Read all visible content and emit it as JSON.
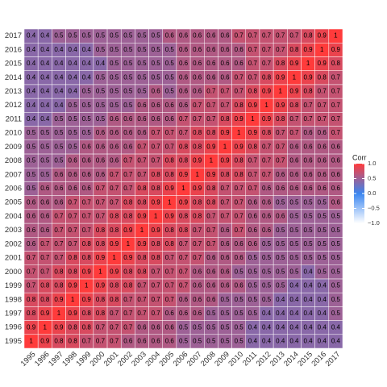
{
  "chart_data": {
    "type": "heatmap",
    "x": [
      "1995",
      "1996",
      "1997",
      "1998",
      "1999",
      "2000",
      "2001",
      "2002",
      "2003",
      "2004",
      "2005",
      "2006",
      "2007",
      "2008",
      "2009",
      "2010",
      "2011",
      "2012",
      "2013",
      "2014",
      "2015",
      "2016",
      "2017"
    ],
    "y": [
      "1995",
      "1996",
      "1997",
      "1998",
      "1999",
      "2000",
      "2001",
      "2002",
      "2003",
      "2004",
      "2005",
      "2006",
      "2007",
      "2008",
      "2009",
      "2010",
      "2011",
      "2012",
      "2013",
      "2014",
      "2015",
      "2016",
      "2017"
    ],
    "values": [
      [
        1,
        0.9,
        0.8,
        0.8,
        0.7,
        0.7,
        0.7,
        0.6,
        0.6,
        0.6,
        0.6,
        0.5,
        0.5,
        0.5,
        0.5,
        0.5,
        0.4,
        0.4,
        0.4,
        0.4,
        0.4,
        0.4,
        0.4
      ],
      [
        0.9,
        1,
        0.9,
        0.8,
        0.8,
        0.7,
        0.7,
        0.7,
        0.6,
        0.6,
        0.6,
        0.5,
        0.5,
        0.5,
        0.5,
        0.5,
        0.4,
        0.4,
        0.4,
        0.4,
        0.4,
        0.4,
        0.4
      ],
      [
        0.8,
        0.9,
        1,
        0.9,
        0.8,
        0.8,
        0.7,
        0.7,
        0.7,
        0.7,
        0.6,
        0.6,
        0.6,
        0.5,
        0.5,
        0.5,
        0.5,
        0.4,
        0.4,
        0.4,
        0.4,
        0.4,
        0.5
      ],
      [
        0.8,
        0.8,
        0.9,
        1,
        0.9,
        0.8,
        0.8,
        0.7,
        0.7,
        0.7,
        0.7,
        0.6,
        0.6,
        0.6,
        0.5,
        0.5,
        0.5,
        0.5,
        0.4,
        0.4,
        0.4,
        0.4,
        0.5
      ],
      [
        0.7,
        0.8,
        0.8,
        0.9,
        1,
        0.9,
        0.8,
        0.8,
        0.7,
        0.7,
        0.7,
        0.7,
        0.6,
        0.6,
        0.6,
        0.6,
        0.5,
        0.5,
        0.5,
        0.4,
        0.4,
        0.4,
        0.5
      ],
      [
        0.7,
        0.7,
        0.8,
        0.8,
        0.9,
        1,
        0.9,
        0.8,
        0.8,
        0.7,
        0.7,
        0.7,
        0.6,
        0.6,
        0.6,
        0.5,
        0.5,
        0.5,
        0.5,
        0.5,
        0.4,
        0.5,
        0.5
      ],
      [
        0.7,
        0.7,
        0.7,
        0.8,
        0.8,
        0.9,
        1,
        0.9,
        0.8,
        0.8,
        0.7,
        0.7,
        0.7,
        0.6,
        0.6,
        0.6,
        0.5,
        0.5,
        0.5,
        0.5,
        0.5,
        0.5,
        0.5
      ],
      [
        0.6,
        0.7,
        0.7,
        0.7,
        0.8,
        0.8,
        0.9,
        1,
        0.9,
        0.8,
        0.8,
        0.7,
        0.7,
        0.7,
        0.6,
        0.6,
        0.6,
        0.5,
        0.5,
        0.5,
        0.5,
        0.5,
        0.5
      ],
      [
        0.6,
        0.6,
        0.7,
        0.7,
        0.7,
        0.8,
        0.8,
        0.9,
        1,
        0.9,
        0.8,
        0.8,
        0.7,
        0.7,
        0.6,
        0.7,
        0.6,
        0.6,
        0.5,
        0.5,
        0.5,
        0.5,
        0.5
      ],
      [
        0.6,
        0.6,
        0.7,
        0.7,
        0.7,
        0.7,
        0.8,
        0.8,
        0.9,
        1,
        0.9,
        0.8,
        0.8,
        0.7,
        0.7,
        0.7,
        0.6,
        0.6,
        0.6,
        0.5,
        0.5,
        0.5,
        0.5
      ],
      [
        0.6,
        0.6,
        0.6,
        0.7,
        0.7,
        0.7,
        0.7,
        0.8,
        0.8,
        0.9,
        1,
        0.9,
        0.8,
        0.8,
        0.7,
        0.7,
        0.6,
        0.6,
        0.5,
        0.5,
        0.5,
        0.5,
        0.6
      ],
      [
        0.5,
        0.6,
        0.6,
        0.6,
        0.6,
        0.7,
        0.7,
        0.7,
        0.8,
        0.8,
        0.9,
        1,
        0.9,
        0.8,
        0.7,
        0.7,
        0.7,
        0.6,
        0.6,
        0.6,
        0.6,
        0.6,
        0.6
      ],
      [
        0.5,
        0.5,
        0.6,
        0.6,
        0.6,
        0.6,
        0.7,
        0.7,
        0.7,
        0.8,
        0.8,
        0.9,
        1,
        0.9,
        0.8,
        0.8,
        0.7,
        0.7,
        0.6,
        0.6,
        0.6,
        0.6,
        0.6
      ],
      [
        0.5,
        0.5,
        0.5,
        0.6,
        0.6,
        0.6,
        0.6,
        0.7,
        0.7,
        0.7,
        0.8,
        0.8,
        0.9,
        1,
        0.9,
        0.8,
        0.7,
        0.7,
        0.7,
        0.6,
        0.6,
        0.6,
        0.6
      ],
      [
        0.5,
        0.5,
        0.5,
        0.5,
        0.6,
        0.6,
        0.6,
        0.6,
        0.7,
        0.7,
        0.7,
        0.8,
        0.8,
        0.9,
        1,
        0.9,
        0.8,
        0.7,
        0.7,
        0.6,
        0.6,
        0.6,
        0.6
      ],
      [
        0.5,
        0.5,
        0.5,
        0.5,
        0.5,
        0.6,
        0.6,
        0.6,
        0.6,
        0.7,
        0.7,
        0.7,
        0.8,
        0.8,
        0.9,
        1,
        0.9,
        0.8,
        0.7,
        0.7,
        0.6,
        0.6,
        0.7
      ],
      [
        0.4,
        0.4,
        0.5,
        0.5,
        0.5,
        0.5,
        0.6,
        0.6,
        0.6,
        0.6,
        0.6,
        0.7,
        0.7,
        0.7,
        0.8,
        0.9,
        1,
        0.9,
        0.8,
        0.7,
        0.7,
        0.7,
        0.7
      ],
      [
        0.4,
        0.4,
        0.4,
        0.5,
        0.5,
        0.5,
        0.5,
        0.5,
        0.6,
        0.6,
        0.6,
        0.6,
        0.7,
        0.7,
        0.7,
        0.8,
        0.9,
        1,
        0.9,
        0.8,
        0.7,
        0.7,
        0.7
      ],
      [
        0.4,
        0.4,
        0.4,
        0.4,
        0.5,
        0.5,
        0.5,
        0.5,
        0.5,
        0.6,
        0.5,
        0.6,
        0.6,
        0.7,
        0.7,
        0.7,
        0.8,
        0.9,
        1,
        0.9,
        0.8,
        0.7,
        0.7
      ],
      [
        0.4,
        0.4,
        0.4,
        0.4,
        0.4,
        0.5,
        0.5,
        0.5,
        0.5,
        0.5,
        0.5,
        0.6,
        0.6,
        0.6,
        0.6,
        0.7,
        0.7,
        0.8,
        0.9,
        1,
        0.9,
        0.8,
        0.7
      ],
      [
        0.4,
        0.4,
        0.4,
        0.4,
        0.4,
        0.4,
        0.5,
        0.5,
        0.5,
        0.5,
        0.5,
        0.6,
        0.6,
        0.6,
        0.6,
        0.6,
        0.7,
        0.7,
        0.8,
        0.9,
        1,
        0.9,
        0.8
      ],
      [
        0.4,
        0.4,
        0.4,
        0.4,
        0.4,
        0.5,
        0.5,
        0.5,
        0.5,
        0.5,
        0.5,
        0.6,
        0.6,
        0.6,
        0.6,
        0.6,
        0.7,
        0.7,
        0.7,
        0.8,
        0.9,
        1,
        0.9
      ],
      [
        0.4,
        0.4,
        0.5,
        0.5,
        0.5,
        0.5,
        0.5,
        0.5,
        0.5,
        0.5,
        0.6,
        0.6,
        0.6,
        0.6,
        0.6,
        0.7,
        0.7,
        0.7,
        0.7,
        0.7,
        0.8,
        0.9,
        1
      ]
    ],
    "legend_title": "Corr",
    "colors": {
      "low": "#ffffff",
      "mid": "#3a86f0",
      "high": "#ff3b3b"
    },
    "clim": [
      -1,
      1
    ],
    "cticks": [
      {
        "value": 1,
        "label": "1.0"
      },
      {
        "value": 0.5,
        "label": "0.5"
      },
      {
        "value": 0,
        "label": "0.0"
      },
      {
        "value": -0.5,
        "label": "−0.5"
      },
      {
        "value": -1,
        "label": "−1.0"
      }
    ]
  }
}
